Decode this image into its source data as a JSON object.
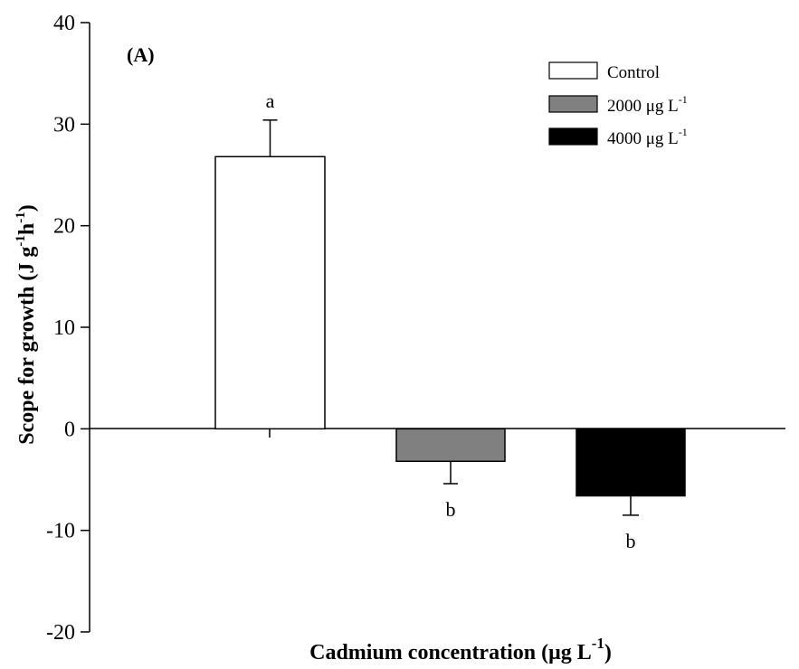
{
  "chart_data": {
    "type": "bar",
    "panel_label": "(A)",
    "title": "",
    "xlabel": "Cadmium concentration (μg L",
    "xlabel_sup": "-1",
    "xlabel_end": ")",
    "ylabel": "Scope for growth (J g",
    "ylabel_sup1": "-1",
    "ylabel_mid": "h",
    "ylabel_sup2": "-1",
    "ylabel_end": ")",
    "ylim": [
      -20,
      40
    ],
    "yticks": [
      -20,
      -10,
      0,
      10,
      20,
      30,
      40
    ],
    "ytick_labels": [
      "-20",
      "-10",
      "0",
      "10",
      "20",
      "30",
      "40"
    ],
    "grid": false,
    "legend_position": "top-right",
    "series": [
      {
        "name": "Control",
        "value": 26.8,
        "error": 3.6,
        "significance": "a",
        "color": "#ffffff"
      },
      {
        "name": "2000 μg L",
        "name_sup": "-1",
        "value": -3.2,
        "error": 2.2,
        "significance": "b",
        "color": "#808080"
      },
      {
        "name": "4000 μg L",
        "name_sup": "-1",
        "value": -6.6,
        "error": 1.9,
        "significance": "b",
        "color": "#000000"
      }
    ]
  }
}
